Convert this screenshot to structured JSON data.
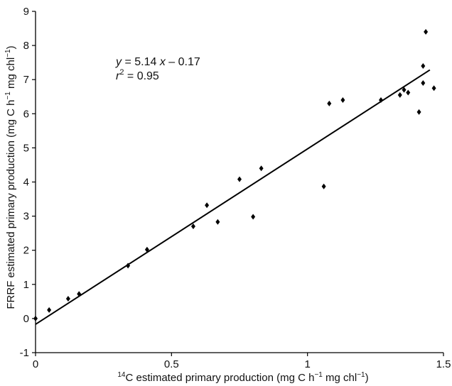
{
  "chart_data": {
    "type": "scatter",
    "xlabel": {
      "prefix_sup": "14",
      "text_before": "C estimated primary production (mg C h",
      "sup1": "−1",
      "text_middle": " mg chl",
      "sup2": "−1",
      "text_after": ")"
    },
    "ylabel": {
      "text_before": "FRRF estimated primary production (mg C h",
      "sup1": "−1",
      "text_middle": " mg chl",
      "sup2": "−1",
      "text_after": ")"
    },
    "xlim": [
      0,
      1.5
    ],
    "ylim": [
      -1,
      9
    ],
    "x_ticks": [
      0,
      0.5,
      1,
      1.5
    ],
    "x_tick_labels": [
      "0",
      "0.5",
      "1",
      "1.5"
    ],
    "y_ticks": [
      -1,
      0,
      1,
      2,
      3,
      4,
      5,
      6,
      7,
      8,
      9
    ],
    "y_tick_labels": [
      "-1",
      "0",
      "1",
      "2",
      "3",
      "4",
      "5",
      "6",
      "7",
      "8",
      "9"
    ],
    "grid": false,
    "points": [
      {
        "x": 0.0,
        "y": 0.0
      },
      {
        "x": 0.05,
        "y": 0.25
      },
      {
        "x": 0.12,
        "y": 0.58
      },
      {
        "x": 0.16,
        "y": 0.72
      },
      {
        "x": 0.34,
        "y": 1.55
      },
      {
        "x": 0.41,
        "y": 2.02
      },
      {
        "x": 0.58,
        "y": 2.7
      },
      {
        "x": 0.63,
        "y": 3.32
      },
      {
        "x": 0.67,
        "y": 2.83
      },
      {
        "x": 0.75,
        "y": 4.08
      },
      {
        "x": 0.8,
        "y": 2.98
      },
      {
        "x": 0.83,
        "y": 4.4
      },
      {
        "x": 1.06,
        "y": 3.87
      },
      {
        "x": 1.08,
        "y": 6.3
      },
      {
        "x": 1.13,
        "y": 6.4
      },
      {
        "x": 1.27,
        "y": 6.4
      },
      {
        "x": 1.34,
        "y": 6.55
      },
      {
        "x": 1.355,
        "y": 6.7
      },
      {
        "x": 1.37,
        "y": 6.62
      },
      {
        "x": 1.41,
        "y": 6.05
      },
      {
        "x": 1.425,
        "y": 6.9
      },
      {
        "x": 1.425,
        "y": 7.4
      },
      {
        "x": 1.435,
        "y": 8.4
      },
      {
        "x": 1.465,
        "y": 6.75
      }
    ],
    "fit": {
      "slope": 5.14,
      "intercept": -0.17,
      "x_range": [
        0,
        1.45
      ]
    },
    "annotation": {
      "eq_y": "y",
      "eq_rest": " = 5.14 ",
      "eq_x": "x",
      "eq_tail": " – 0.17",
      "r_label": "r",
      "r_sup": "2",
      "r_value": " = 0.95"
    }
  }
}
